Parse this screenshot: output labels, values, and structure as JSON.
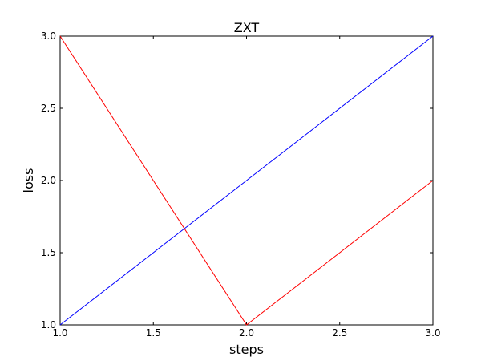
{
  "chart_data": {
    "type": "line",
    "title": "ZXT",
    "xlabel": "steps",
    "ylabel": "loss",
    "xlim": [
      1.0,
      3.0
    ],
    "ylim": [
      1.0,
      3.0
    ],
    "xticks": [
      "1.0",
      "1.5",
      "2.0",
      "2.5",
      "3.0"
    ],
    "yticks": [
      "1.0",
      "1.5",
      "2.0",
      "2.5",
      "3.0"
    ],
    "grid": false,
    "series": [
      {
        "color": "#0000ff",
        "x": [
          1,
          2,
          3
        ],
        "y": [
          1,
          2,
          3
        ]
      },
      {
        "color": "#ff0000",
        "x": [
          1,
          2,
          3
        ],
        "y": [
          3,
          1,
          2
        ]
      }
    ]
  }
}
